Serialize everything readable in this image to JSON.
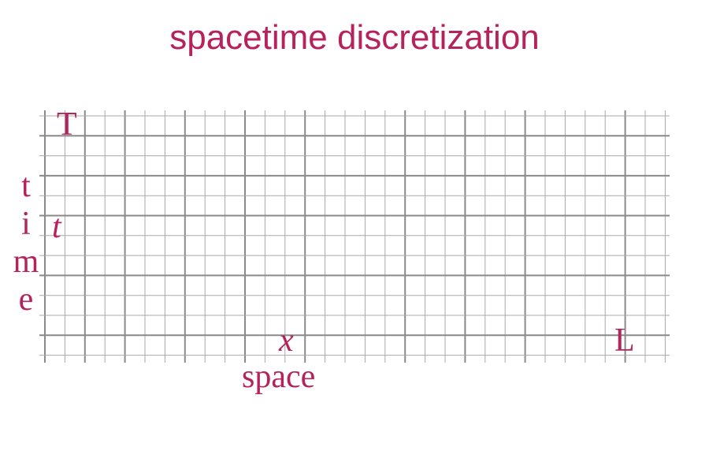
{
  "title": "spacetime discretization",
  "labels": {
    "T": "T",
    "t": "t",
    "x": "x",
    "L": "L",
    "space": "space",
    "time_letters": [
      "t",
      "i",
      "m",
      "e"
    ]
  },
  "colors": {
    "accent": "#b5225c",
    "grid_major": "#8a8a8a",
    "grid_minor": "#a8a8a8"
  }
}
